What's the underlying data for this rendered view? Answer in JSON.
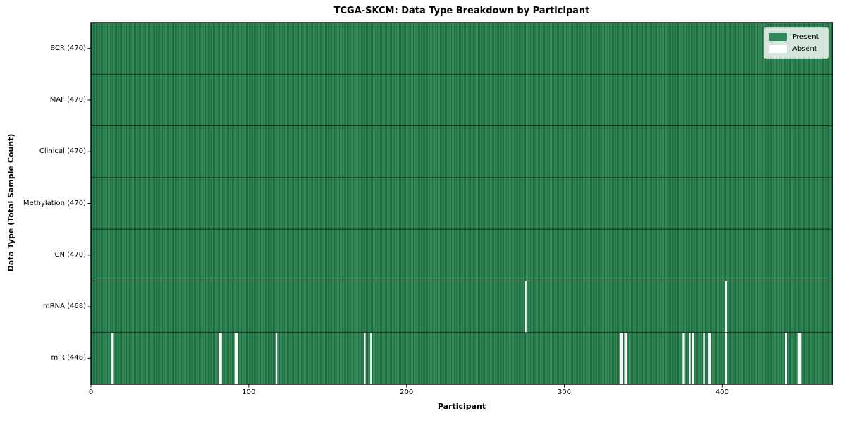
{
  "title": "TCGA-SKCM: Data Type Breakdown by Participant",
  "axes": {
    "xlabel": "Participant",
    "ylabel": "Data Type (Total Sample Count)"
  },
  "legend": {
    "present_label": "Present",
    "absent_label": "Absent"
  },
  "colors": {
    "present": "#2e8b57",
    "absent": "#ffffff",
    "cell_edge": "#16381f",
    "row_divider": "#1c1c1c",
    "axis_line": "#000000",
    "legend_bg": "rgba(255,255,255,0.8)"
  },
  "chart_data": {
    "type": "heatmap",
    "title": "TCGA-SKCM: Data Type Breakdown by Participant",
    "xlabel": "Participant",
    "ylabel": "Data Type (Total Sample Count)",
    "legend_entries": [
      "Present",
      "Absent"
    ],
    "legend_position": "upper right",
    "n_participants": 470,
    "x_ticks": [
      0,
      100,
      200,
      300,
      400
    ],
    "xlim": [
      0,
      470
    ],
    "rows": [
      {
        "label": "BCR (470)",
        "data_type": "BCR",
        "present_count": 470,
        "absent_participants": []
      },
      {
        "label": "MAF (470)",
        "data_type": "MAF",
        "present_count": 470,
        "absent_participants": []
      },
      {
        "label": "Clinical (470)",
        "data_type": "Clinical",
        "present_count": 470,
        "absent_participants": []
      },
      {
        "label": "Methylation (470)",
        "data_type": "Methylation",
        "present_count": 470,
        "absent_participants": []
      },
      {
        "label": "CN (470)",
        "data_type": "CN",
        "present_count": 470,
        "absent_participants": []
      },
      {
        "label": "mRNA (468)",
        "data_type": "mRNA",
        "present_count": 468,
        "absent_participants": [
          275,
          402
        ]
      },
      {
        "label": "miR (448)",
        "data_type": "miR",
        "present_count": 448,
        "absent_participants": [
          13,
          81,
          82,
          91,
          92,
          117,
          173,
          177,
          335,
          336,
          338,
          339,
          375,
          379,
          381,
          388,
          391,
          392,
          402,
          440,
          448,
          449
        ]
      }
    ]
  }
}
